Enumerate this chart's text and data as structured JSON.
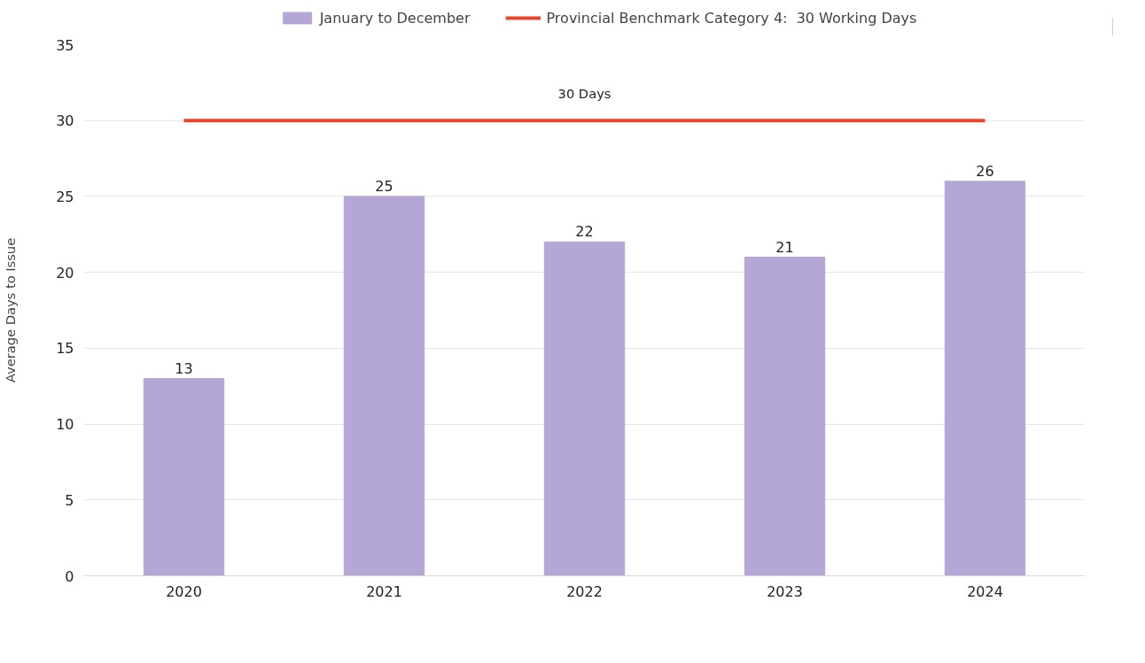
{
  "chart_data": {
    "type": "bar",
    "ylabel": "Average Days to Issue",
    "categories": [
      "2020",
      "2021",
      "2022",
      "2023",
      "2024"
    ],
    "series": [
      {
        "name": "January to December",
        "color": "#b4a7d6",
        "values": [
          13,
          25,
          22,
          21,
          26
        ],
        "value_labels": [
          "13",
          "25",
          "22",
          "21",
          "26"
        ]
      },
      {
        "name": "Provincial Benchmark Category 4:  30 Working Days",
        "type": "line",
        "color": "#e8452c",
        "values": [
          30,
          30,
          30,
          30,
          30
        ]
      }
    ],
    "annotations": [
      {
        "text": "30 Days",
        "x": "2022",
        "y": 30
      }
    ],
    "ylim": [
      0,
      35
    ],
    "yticks": [
      0,
      5,
      10,
      15,
      20,
      25,
      30,
      35
    ],
    "grid": "y",
    "legend": "top"
  }
}
